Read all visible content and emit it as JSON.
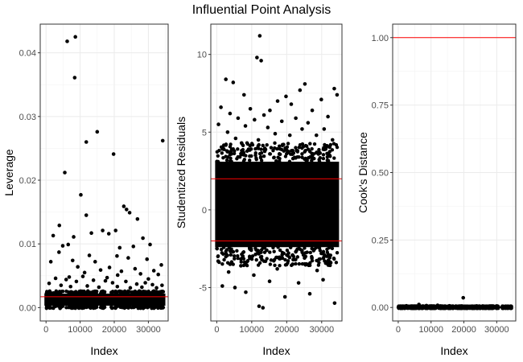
{
  "figure": {
    "title": "Influential Point Analysis",
    "colors": {
      "point": "#000000",
      "threshold": "#ff0000",
      "grid": "#ebebeb",
      "panel_border": "#333333",
      "tick_text": "#4d4d4d"
    }
  },
  "chart_data": [
    {
      "type": "scatter",
      "xlabel": "Index",
      "ylabel": "Leverage",
      "xlim": [
        -1700,
        35800
      ],
      "ylim": [
        -0.0021,
        0.0445
      ],
      "xticks": [
        0,
        10000,
        20000,
        30000
      ],
      "xtick_labels": [
        "0",
        "10000",
        "20000",
        "30000"
      ],
      "yticks": [
        0.0,
        0.01,
        0.02,
        0.03,
        0.04
      ],
      "ytick_labels": [
        "0.00",
        "0.01",
        "0.02",
        "0.03",
        "0.04"
      ],
      "grid": true,
      "hlines": [
        0.0017
      ],
      "dense_band": {
        "x": [
          0,
          34500
        ],
        "y": [
          0.0003,
          0.0022
        ]
      },
      "points": [
        [
          6200,
          0.0418
        ],
        [
          8600,
          0.0425
        ],
        [
          8400,
          0.0361
        ],
        [
          15000,
          0.0276
        ],
        [
          11800,
          0.026
        ],
        [
          19800,
          0.0241
        ],
        [
          34200,
          0.0262
        ],
        [
          5500,
          0.0212
        ],
        [
          10200,
          0.0177
        ],
        [
          22800,
          0.0159
        ],
        [
          23600,
          0.0154
        ],
        [
          24500,
          0.0149
        ],
        [
          26800,
          0.0139
        ],
        [
          11800,
          0.0145
        ],
        [
          3900,
          0.0129
        ],
        [
          16600,
          0.0121
        ],
        [
          20400,
          0.0121
        ],
        [
          2100,
          0.0113
        ],
        [
          8100,
          0.0111
        ],
        [
          13300,
          0.0117
        ],
        [
          18400,
          0.0116
        ],
        [
          28400,
          0.0109
        ],
        [
          30500,
          0.0099
        ],
        [
          4900,
          0.0097
        ],
        [
          6500,
          0.0099
        ],
        [
          25600,
          0.0096
        ],
        [
          21600,
          0.0094
        ],
        [
          3800,
          0.0087
        ],
        [
          12700,
          0.0082
        ],
        [
          20800,
          0.0081
        ],
        [
          24100,
          0.0078
        ],
        [
          29600,
          0.0076
        ],
        [
          1400,
          0.0072
        ],
        [
          7800,
          0.0074
        ],
        [
          14400,
          0.0072
        ],
        [
          33800,
          0.0067
        ],
        [
          9300,
          0.0064
        ],
        [
          18600,
          0.0063
        ],
        [
          26100,
          0.0061
        ],
        [
          16000,
          0.0059
        ],
        [
          22100,
          0.0057
        ],
        [
          31600,
          0.0058
        ],
        [
          27700,
          0.0053
        ],
        [
          32900,
          0.0052
        ],
        [
          10800,
          0.0049
        ],
        [
          2800,
          0.0046
        ],
        [
          5900,
          0.0044
        ],
        [
          8900,
          0.0041
        ],
        [
          13900,
          0.0043
        ],
        [
          17400,
          0.0042
        ],
        [
          19500,
          0.0039
        ],
        [
          23400,
          0.0041
        ],
        [
          26600,
          0.0037
        ],
        [
          29100,
          0.0039
        ],
        [
          31200,
          0.0036
        ],
        [
          34000,
          0.0035
        ],
        [
          900,
          0.0038
        ],
        [
          4400,
          0.0035
        ],
        [
          7200,
          0.0033
        ],
        [
          12100,
          0.0034
        ],
        [
          15500,
          0.0032
        ],
        [
          20900,
          0.0033
        ],
        [
          24700,
          0.0031
        ],
        [
          28100,
          0.0032
        ],
        [
          32400,
          0.0031
        ],
        [
          6800,
          0.0048
        ],
        [
          11300,
          0.0055
        ],
        [
          21000,
          0.0051
        ],
        [
          30000,
          0.0045
        ],
        [
          17900,
          0.0047
        ]
      ]
    },
    {
      "type": "scatter",
      "xlabel": "Index",
      "ylabel": "Studentized Residuals",
      "xlim": [
        -1700,
        35800
      ],
      "ylim": [
        -7.15,
        11.95
      ],
      "xticks": [
        0,
        10000,
        20000,
        30000
      ],
      "xtick_labels": [
        "0",
        "10000",
        "20000",
        "30000"
      ],
      "yticks": [
        -5,
        0,
        5,
        10
      ],
      "ytick_labels": [
        "-5",
        "0",
        "5",
        "10"
      ],
      "grid": true,
      "hlines": [
        2,
        -2
      ],
      "dense_band": {
        "x": [
          0,
          34500
        ],
        "y": [
          -2.4,
          3.1
        ]
      },
      "points": [
        [
          12300,
          11.2
        ],
        [
          11500,
          9.8
        ],
        [
          12700,
          9.6
        ],
        [
          2600,
          8.4
        ],
        [
          4700,
          8.2
        ],
        [
          25200,
          8.1
        ],
        [
          23800,
          7.7
        ],
        [
          33600,
          7.8
        ],
        [
          34400,
          7.4
        ],
        [
          7800,
          7.4
        ],
        [
          19800,
          7.3
        ],
        [
          17400,
          7.0
        ],
        [
          29900,
          7.1
        ],
        [
          21300,
          6.8
        ],
        [
          1200,
          6.6
        ],
        [
          9600,
          6.5
        ],
        [
          15200,
          6.4
        ],
        [
          27300,
          6.4
        ],
        [
          3800,
          6.2
        ],
        [
          13500,
          6.1
        ],
        [
          31800,
          6.0
        ],
        [
          6100,
          5.9
        ],
        [
          22600,
          5.9
        ],
        [
          10800,
          5.8
        ],
        [
          18600,
          5.7
        ],
        [
          26100,
          5.6
        ],
        [
          500,
          5.5
        ],
        [
          8200,
          5.4
        ],
        [
          14600,
          5.3
        ],
        [
          24400,
          5.2
        ],
        [
          30700,
          5.2
        ],
        [
          3100,
          5.0
        ],
        [
          16700,
          4.9
        ],
        [
          20900,
          4.8
        ],
        [
          28500,
          4.8
        ],
        [
          5400,
          4.6
        ],
        [
          11900,
          4.5
        ],
        [
          33100,
          4.5
        ],
        [
          7100,
          4.3
        ],
        [
          19100,
          4.2
        ],
        [
          25700,
          4.1
        ],
        [
          1800,
          4.0
        ],
        [
          9100,
          3.9
        ],
        [
          13900,
          3.9
        ],
        [
          23100,
          3.8
        ],
        [
          29300,
          3.7
        ],
        [
          4200,
          3.6
        ],
        [
          17900,
          3.6
        ],
        [
          32300,
          3.5
        ],
        [
          6600,
          3.4
        ],
        [
          12600,
          3.4
        ],
        [
          21800,
          3.3
        ],
        [
          27800,
          3.3
        ],
        [
          12100,
          -6.2
        ],
        [
          13200,
          -6.3
        ],
        [
          33700,
          -6.0
        ],
        [
          5200,
          -5.0
        ],
        [
          8300,
          -5.3
        ],
        [
          19500,
          -5.6
        ],
        [
          26600,
          -5.4
        ],
        [
          1600,
          -4.9
        ],
        [
          23400,
          -4.7
        ],
        [
          30400,
          -4.5
        ],
        [
          15100,
          -4.6
        ],
        [
          10600,
          -4.2
        ],
        [
          3400,
          -4.0
        ],
        [
          28700,
          -3.9
        ],
        [
          17300,
          -3.8
        ],
        [
          6900,
          -3.6
        ],
        [
          21700,
          -3.5
        ],
        [
          32600,
          -3.4
        ],
        [
          400,
          -3.3
        ],
        [
          12900,
          -3.2
        ],
        [
          25100,
          -3.1
        ],
        [
          9400,
          -3.0
        ],
        [
          18700,
          -2.9
        ],
        [
          29900,
          -2.8
        ],
        [
          4700,
          -2.7
        ],
        [
          22600,
          -2.7
        ],
        [
          14300,
          -2.6
        ]
      ]
    },
    {
      "type": "scatter",
      "xlabel": "Index",
      "ylabel": "Cook's Distance",
      "xlim": [
        -1700,
        35800
      ],
      "ylim": [
        -0.05,
        1.05
      ],
      "xticks": [
        0,
        10000,
        20000,
        30000
      ],
      "xtick_labels": [
        "0",
        "10000",
        "20000",
        "30000"
      ],
      "yticks": [
        0.0,
        0.25,
        0.5,
        0.75,
        1.0
      ],
      "ytick_labels": [
        "0.00",
        "0.25",
        "0.50",
        "0.75",
        "1.00"
      ],
      "grid": true,
      "hlines": [
        1.0
      ],
      "dense_band": {
        "x": [
          0,
          34500
        ],
        "y": [
          -0.002,
          0.004
        ]
      },
      "points": [
        [
          19800,
          0.036
        ],
        [
          6300,
          0.011
        ],
        [
          12000,
          0.008
        ],
        [
          8600,
          0.007
        ],
        [
          2500,
          0.006
        ],
        [
          15600,
          0.006
        ],
        [
          23800,
          0.005
        ],
        [
          30200,
          0.005
        ],
        [
          4400,
          0.004
        ],
        [
          10300,
          0.004
        ],
        [
          27400,
          0.004
        ],
        [
          33600,
          0.004
        ],
        [
          17900,
          0.004
        ],
        [
          21900,
          0.003
        ],
        [
          1300,
          0.003
        ]
      ]
    }
  ]
}
